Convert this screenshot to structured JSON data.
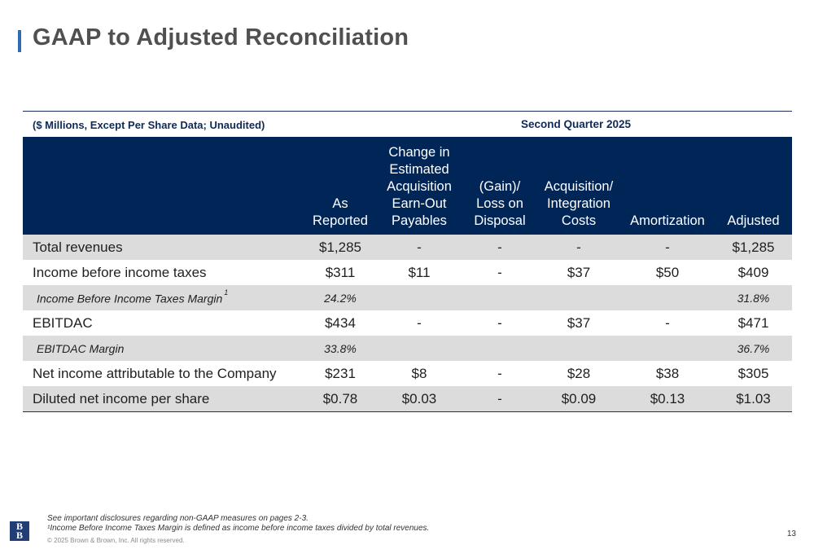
{
  "title": "GAAP to Adjusted Reconciliation",
  "table": {
    "unit_label": "($ Millions, Except Per Share Data; Unaudited)",
    "period_label": "Second Quarter 2025",
    "columns": [
      [
        "As",
        "Reported"
      ],
      [
        "Change in",
        "Estimated",
        "Acquisition",
        "Earn-Out",
        "Payables"
      ],
      [
        "(Gain)/",
        "Loss on",
        "Disposal"
      ],
      [
        "Acquisition/",
        "Integration",
        "Costs"
      ],
      [
        "Amortization"
      ],
      [
        "Adjusted"
      ]
    ],
    "rows": [
      {
        "label": "Total revenues",
        "values": [
          "$1,285",
          "-",
          "-",
          "-",
          "-",
          "$1,285"
        ]
      },
      {
        "label": "Income before income taxes",
        "values": [
          "$311",
          "$11",
          "-",
          "$37",
          "$50",
          "$409"
        ]
      },
      {
        "label": "Income Before Income Taxes Margin",
        "footnote": "1",
        "values": [
          "24.2%",
          "",
          "",
          "",
          "",
          "31.8%"
        ]
      },
      {
        "label": "EBITDAC",
        "values": [
          "$434",
          "-",
          "-",
          "$37",
          "-",
          "$471"
        ]
      },
      {
        "label": "EBITDAC Margin",
        "values": [
          "33.8%",
          "",
          "",
          "",
          "",
          "36.7%"
        ]
      },
      {
        "label": "Net income attributable to the Company",
        "values": [
          "$231",
          "$8",
          "-",
          "$28",
          "$38",
          "$305"
        ]
      },
      {
        "label": "Diluted net income per share",
        "values": [
          "$0.78",
          "$0.03",
          "-",
          "$0.09",
          "$0.13",
          "$1.03"
        ]
      }
    ]
  },
  "footnotes": {
    "line1": "See important disclosures regarding non-GAAP measures on pages 2-3.",
    "line2": "¹Income Before Income Taxes Margin is defined as income before income taxes divided by total revenues."
  },
  "copyright": "© 2025 Brown & Brown, Inc. All rights reserved.",
  "logo_text": "BB",
  "page_number": "13",
  "colors": {
    "header_bg": "#002657",
    "accent": "#2d6cb5",
    "row_grey": "#dcdcdc"
  }
}
